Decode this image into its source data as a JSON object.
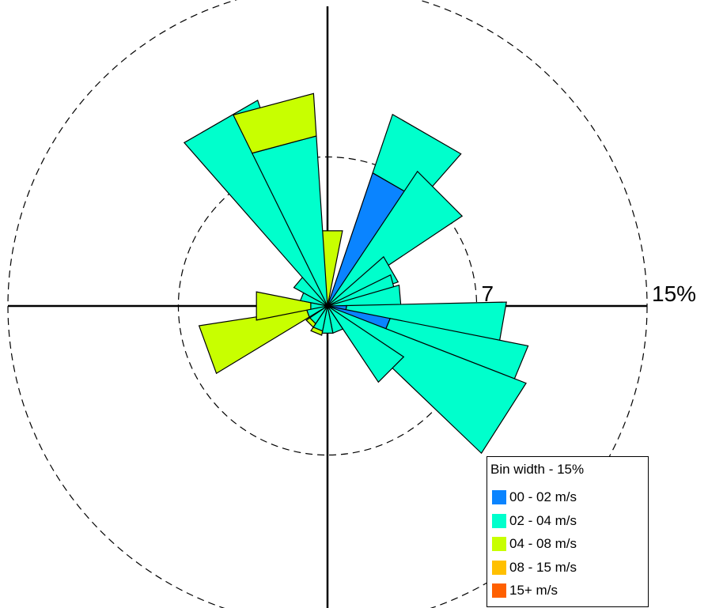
{
  "chart_data": {
    "type": "wind-rose",
    "direction_sector_width_deg": 22.5,
    "rings": [
      {
        "value": 7,
        "label": "7",
        "style": "dashed"
      },
      {
        "value": 15,
        "label": "15%",
        "style": "dashed"
      }
    ],
    "speed_bins": [
      {
        "name": "00 - 02 m/s",
        "color": "#0a84ff"
      },
      {
        "name": "02 - 04 m/s",
        "color": "#00ffcc"
      },
      {
        "name": "04 - 08 m/s",
        "color": "#c8ff00"
      },
      {
        "name": "08 - 15 m/s",
        "color": "#ffc000"
      },
      {
        "name": "15+ m/s",
        "color": "#ff6000"
      }
    ],
    "sectors": [
      {
        "direction_deg": 0,
        "segments": [
          {
            "bin": 2,
            "value": 3.6
          }
        ]
      },
      {
        "direction_deg": 22.5,
        "segments": [
          {
            "bin": 1,
            "value": 0.3
          }
        ]
      },
      {
        "direction_deg": 30,
        "segments": [
          {
            "bin": 0,
            "value": 6.6
          },
          {
            "bin": 1,
            "value": 2.9
          }
        ]
      },
      {
        "direction_deg": 45,
        "segments": [
          {
            "bin": 1,
            "value": 7.6
          }
        ]
      },
      {
        "direction_deg": 60,
        "segments": [
          {
            "bin": 1,
            "value": 3.5
          }
        ]
      },
      {
        "direction_deg": 75,
        "segments": [
          {
            "bin": 1,
            "value": 3.3
          }
        ]
      },
      {
        "direction_deg": 85,
        "segments": [
          {
            "bin": 1,
            "value": 3.5
          }
        ]
      },
      {
        "direction_deg": 100,
        "segments": [
          {
            "bin": 0,
            "value": 0.9
          },
          {
            "bin": 1,
            "value": 7.5
          }
        ]
      },
      {
        "direction_deg": 112.5,
        "segments": [
          {
            "bin": 0,
            "value": 3.0
          },
          {
            "bin": 1,
            "value": 6.6
          }
        ]
      },
      {
        "direction_deg": 122.5,
        "segments": [
          {
            "bin": 1,
            "value": 10.0
          }
        ]
      },
      {
        "direction_deg": 135,
        "segments": [
          {
            "bin": 1,
            "value": 4.3
          }
        ]
      },
      {
        "direction_deg": 157.5,
        "segments": [
          {
            "bin": 1,
            "value": 1.3
          }
        ]
      },
      {
        "direction_deg": 180,
        "segments": [
          {
            "bin": 1,
            "value": 1.3
          }
        ]
      },
      {
        "direction_deg": 202.5,
        "segments": [
          {
            "bin": 1,
            "value": 1.2
          },
          {
            "bin": 2,
            "value": 0.2
          }
        ]
      },
      {
        "direction_deg": 225,
        "segments": [
          {
            "bin": 1,
            "value": 1.0
          },
          {
            "bin": 2,
            "value": 0.2
          }
        ]
      },
      {
        "direction_deg": 250,
        "segments": [
          {
            "bin": 1,
            "value": 1.0
          },
          {
            "bin": 2,
            "value": 5.1
          }
        ]
      },
      {
        "direction_deg": 270,
        "segments": [
          {
            "bin": 1,
            "value": 0.8
          },
          {
            "bin": 2,
            "value": 2.6
          }
        ]
      },
      {
        "direction_deg": 292.5,
        "segments": [
          {
            "bin": 1,
            "value": 1.3
          }
        ]
      },
      {
        "direction_deg": 310,
        "segments": [
          {
            "bin": 1,
            "value": 1.8
          }
        ]
      },
      {
        "direction_deg": 330,
        "segments": [
          {
            "bin": 1,
            "value": 10.2
          }
        ]
      },
      {
        "direction_deg": 345,
        "segments": [
          {
            "bin": 1,
            "value": 8.0
          },
          {
            "bin": 2,
            "value": 2.0
          }
        ]
      }
    ]
  },
  "legend": {
    "title": "Bin width - 15%",
    "items": [
      {
        "label": "00 - 02 m/s",
        "color": "#0a84ff"
      },
      {
        "label": "02 - 04 m/s",
        "color": "#00ffcc"
      },
      {
        "label": "04 - 08 m/s",
        "color": "#c8ff00"
      },
      {
        "label": "08 - 15 m/s",
        "color": "#ffc000"
      },
      {
        "label": "15+ m/s",
        "color": "#ff6000"
      }
    ]
  }
}
